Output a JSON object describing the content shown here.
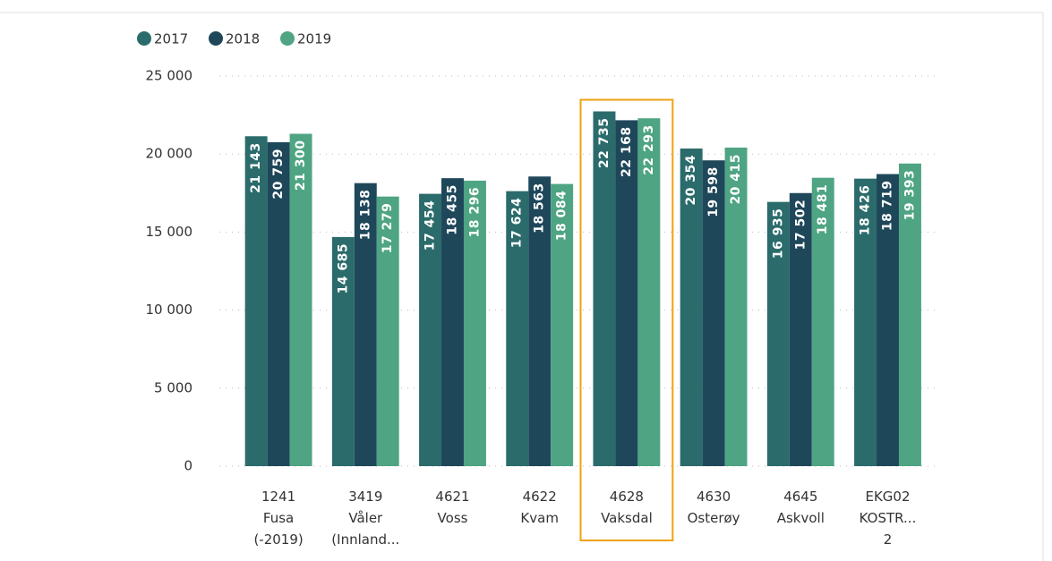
{
  "chart_data": {
    "type": "bar",
    "categories": [
      [
        "1241",
        "Fusa",
        "(-2019)"
      ],
      [
        "3419",
        "Våler",
        "(Innland..."
      ],
      [
        "4621",
        "Voss"
      ],
      [
        "4622",
        "Kvam"
      ],
      [
        "4628",
        "Vaksdal"
      ],
      [
        "4630",
        "Osterøy"
      ],
      [
        "4645",
        "Askvoll"
      ],
      [
        "EKG02",
        "KOSTR...",
        "2"
      ]
    ],
    "series": [
      {
        "name": "2017",
        "color": "#2b6b6b",
        "values": [
          21143,
          14685,
          17454,
          17624,
          22735,
          20354,
          16935,
          18426
        ],
        "value_labels": [
          "21 143",
          "14 685",
          "17 454",
          "17 624",
          "22 735",
          "20 354",
          "16 935",
          "18 426"
        ]
      },
      {
        "name": "2018",
        "color": "#1f475a",
        "values": [
          20759,
          18138,
          18455,
          18563,
          22168,
          19598,
          17502,
          18719
        ],
        "value_labels": [
          "20 759",
          "18 138",
          "18 455",
          "18 563",
          "22 168",
          "19 598",
          "17 502",
          "18 719"
        ]
      },
      {
        "name": "2019",
        "color": "#4ea483",
        "values": [
          21300,
          17279,
          18296,
          18084,
          22293,
          20415,
          18481,
          19393
        ],
        "value_labels": [
          "21 300",
          "17 279",
          "18 296",
          "18 084",
          "22 293",
          "20 415",
          "18 481",
          "19 393"
        ]
      }
    ],
    "ylim": [
      0,
      25000
    ],
    "yticks": [
      0,
      {
        "value": 5000,
        "label": "5 000"
      },
      {
        "value": 10000,
        "label": "10 000"
      },
      {
        "value": 15000,
        "label": "15 000"
      },
      {
        "value": 20000,
        "label": "20 000"
      },
      {
        "value": 25000,
        "label": "25 000"
      }
    ],
    "grid": true,
    "legend": "top-left",
    "highlight": 4,
    "highlight_color": "#f0a20f"
  }
}
